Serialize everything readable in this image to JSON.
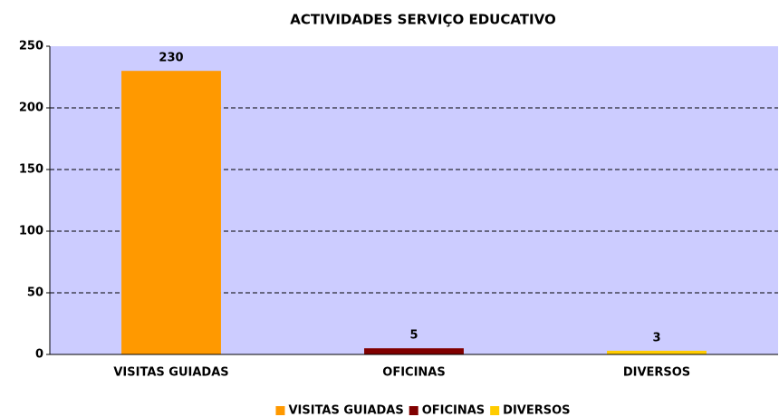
{
  "chart_data": {
    "type": "bar",
    "title": "ACTIVIDADES SERVIÇO EDUCATIVO",
    "categories": [
      "VISITAS GUIADAS",
      "OFICINAS",
      "DIVERSOS"
    ],
    "values": [
      230,
      5,
      3
    ],
    "colors": [
      "#ff9900",
      "#800000",
      "#ffcc00"
    ],
    "ylim": [
      0,
      250
    ],
    "yticks": [
      0,
      50,
      100,
      150,
      200,
      250
    ],
    "grid": true,
    "legend": "bottom"
  }
}
